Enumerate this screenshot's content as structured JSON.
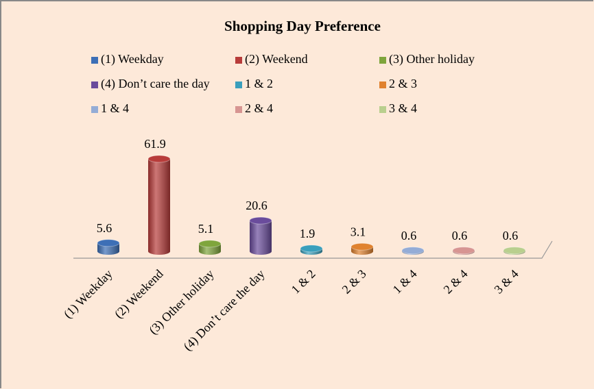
{
  "chart_data": {
    "type": "bar",
    "title": "Shopping Day Preference",
    "categories": [
      "(1) Weekday",
      "(2) Weekend",
      "(3) Other holiday",
      "(4) Don’t care the day",
      "1 & 2",
      "2 & 3",
      "1 & 4",
      "2 & 4",
      "3 & 4"
    ],
    "values": [
      5.6,
      61.9,
      5.1,
      20.6,
      1.9,
      3.1,
      0.6,
      0.6,
      0.6
    ],
    "colors": [
      "#3d6fb6",
      "#b83c3a",
      "#7fa53c",
      "#6a4c9c",
      "#3a9fbc",
      "#e0822f",
      "#94acd6",
      "#d79592",
      "#b9cf8e"
    ],
    "legend": "top"
  }
}
